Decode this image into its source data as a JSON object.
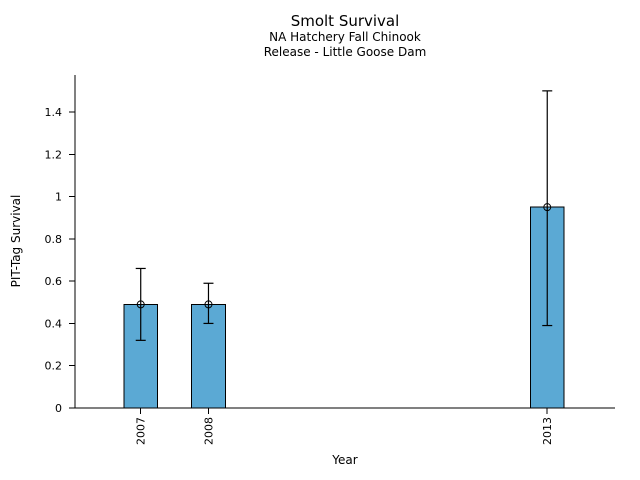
{
  "chart_data": {
    "type": "bar",
    "title": "Smolt Survival",
    "subtitle": [
      "NA Hatchery Fall Chinook",
      "Release - Little Goose Dam"
    ],
    "xlabel": "Year",
    "ylabel": "PIT-Tag Survival",
    "categories": [
      "2007",
      "2008",
      "2013"
    ],
    "x": [
      2007,
      2008,
      2013
    ],
    "values": [
      0.49,
      0.49,
      0.95
    ],
    "ci_low": [
      0.32,
      0.4,
      0.39
    ],
    "ci_high": [
      0.66,
      0.59,
      1.5
    ],
    "yticks": [
      0,
      0.2,
      0.4,
      0.6,
      0.8,
      1.0,
      1.2,
      1.4
    ],
    "ytick_labels": [
      "0",
      "0.2",
      "0.4",
      "0.6",
      "0.8",
      "1",
      "1.2",
      "1.4"
    ],
    "xlim": [
      2006.03,
      2014.0
    ],
    "ylim": [
      0,
      1.575
    ],
    "bar_width_years": 0.5,
    "bar_fill": "#5BA9D4",
    "bar_edge": "#000000",
    "errorbar_color": "#000000",
    "axis_color": "#000000",
    "marker": "open-circle",
    "grid": false,
    "legend": "none",
    "error_caps": true
  }
}
